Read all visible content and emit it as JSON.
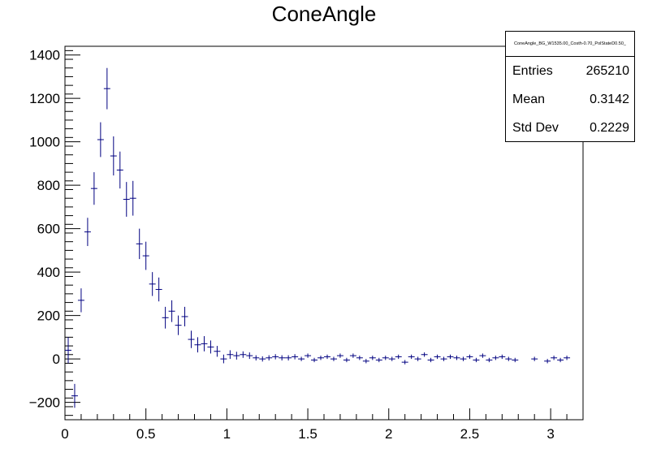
{
  "chart_data": {
    "type": "scatter",
    "title": "ConeAngle",
    "xlabel": "",
    "ylabel": "",
    "xlim": [
      0,
      3.2
    ],
    "ylim": [
      -280,
      1440
    ],
    "xticks": [
      0,
      0.5,
      1,
      1.5,
      2,
      2.5,
      3
    ],
    "xtick_labels": [
      "0",
      "0.5",
      "1",
      "1.5",
      "2",
      "2.5",
      "3"
    ],
    "yticks": [
      -200,
      0,
      200,
      400,
      600,
      800,
      1000,
      1200,
      1400
    ],
    "ytick_labels": [
      "−200",
      "0",
      "200",
      "400",
      "600",
      "800",
      "1000",
      "1200",
      "1400"
    ],
    "grid": false,
    "bin_width": 0.04,
    "series": [
      {
        "color": "#000080",
        "x": [
          0.02,
          0.06,
          0.1,
          0.14,
          0.18,
          0.22,
          0.26,
          0.3,
          0.34,
          0.38,
          0.42,
          0.46,
          0.5,
          0.54,
          0.58,
          0.62,
          0.66,
          0.7,
          0.74,
          0.78,
          0.82,
          0.86,
          0.9,
          0.94,
          0.98,
          1.02,
          1.06,
          1.1,
          1.14,
          1.18,
          1.22,
          1.26,
          1.3,
          1.34,
          1.38,
          1.42,
          1.46,
          1.5,
          1.54,
          1.58,
          1.62,
          1.66,
          1.7,
          1.74,
          1.78,
          1.82,
          1.86,
          1.9,
          1.94,
          1.98,
          2.02,
          2.06,
          2.1,
          2.14,
          2.18,
          2.22,
          2.26,
          2.3,
          2.34,
          2.38,
          2.42,
          2.46,
          2.5,
          2.54,
          2.58,
          2.62,
          2.66,
          2.7,
          2.74,
          2.78,
          2.9,
          2.98,
          3.02,
          3.06,
          3.1
        ],
        "y": [
          40,
          -170,
          270,
          585,
          785,
          1010,
          1245,
          935,
          870,
          735,
          740,
          530,
          475,
          345,
          320,
          190,
          220,
          155,
          195,
          90,
          65,
          70,
          55,
          35,
          0,
          20,
          15,
          20,
          15,
          5,
          0,
          5,
          10,
          5,
          5,
          10,
          0,
          15,
          -5,
          5,
          10,
          0,
          15,
          -5,
          15,
          5,
          -10,
          5,
          -5,
          5,
          0,
          10,
          -15,
          10,
          0,
          20,
          -5,
          10,
          0,
          10,
          5,
          0,
          10,
          -5,
          15,
          -5,
          5,
          10,
          0,
          -5,
          0,
          -10,
          5,
          -5,
          5
        ],
        "yerr": [
          60,
          55,
          55,
          65,
          75,
          80,
          95,
          90,
          85,
          80,
          80,
          70,
          65,
          55,
          55,
          50,
          50,
          45,
          45,
          40,
          35,
          35,
          30,
          25,
          20,
          20,
          18,
          15,
          15,
          12,
          12,
          12,
          12,
          12,
          12,
          12,
          10,
          10,
          10,
          10,
          10,
          10,
          10,
          10,
          10,
          10,
          10,
          10,
          10,
          10,
          10,
          10,
          10,
          10,
          10,
          10,
          10,
          10,
          10,
          10,
          10,
          10,
          10,
          10,
          10,
          10,
          10,
          10,
          10,
          10,
          10,
          10,
          10,
          10,
          10
        ]
      }
    ],
    "legend": "top-right",
    "stats": {
      "name": "ConeAngle_BG_W1535.00_Costh-0.70_PolStateD0.50_",
      "entries_label": "Entries",
      "entries": "265210",
      "mean_label": "Mean",
      "mean": "0.3142",
      "stddev_label": "Std Dev",
      "stddev": "0.2229"
    }
  }
}
